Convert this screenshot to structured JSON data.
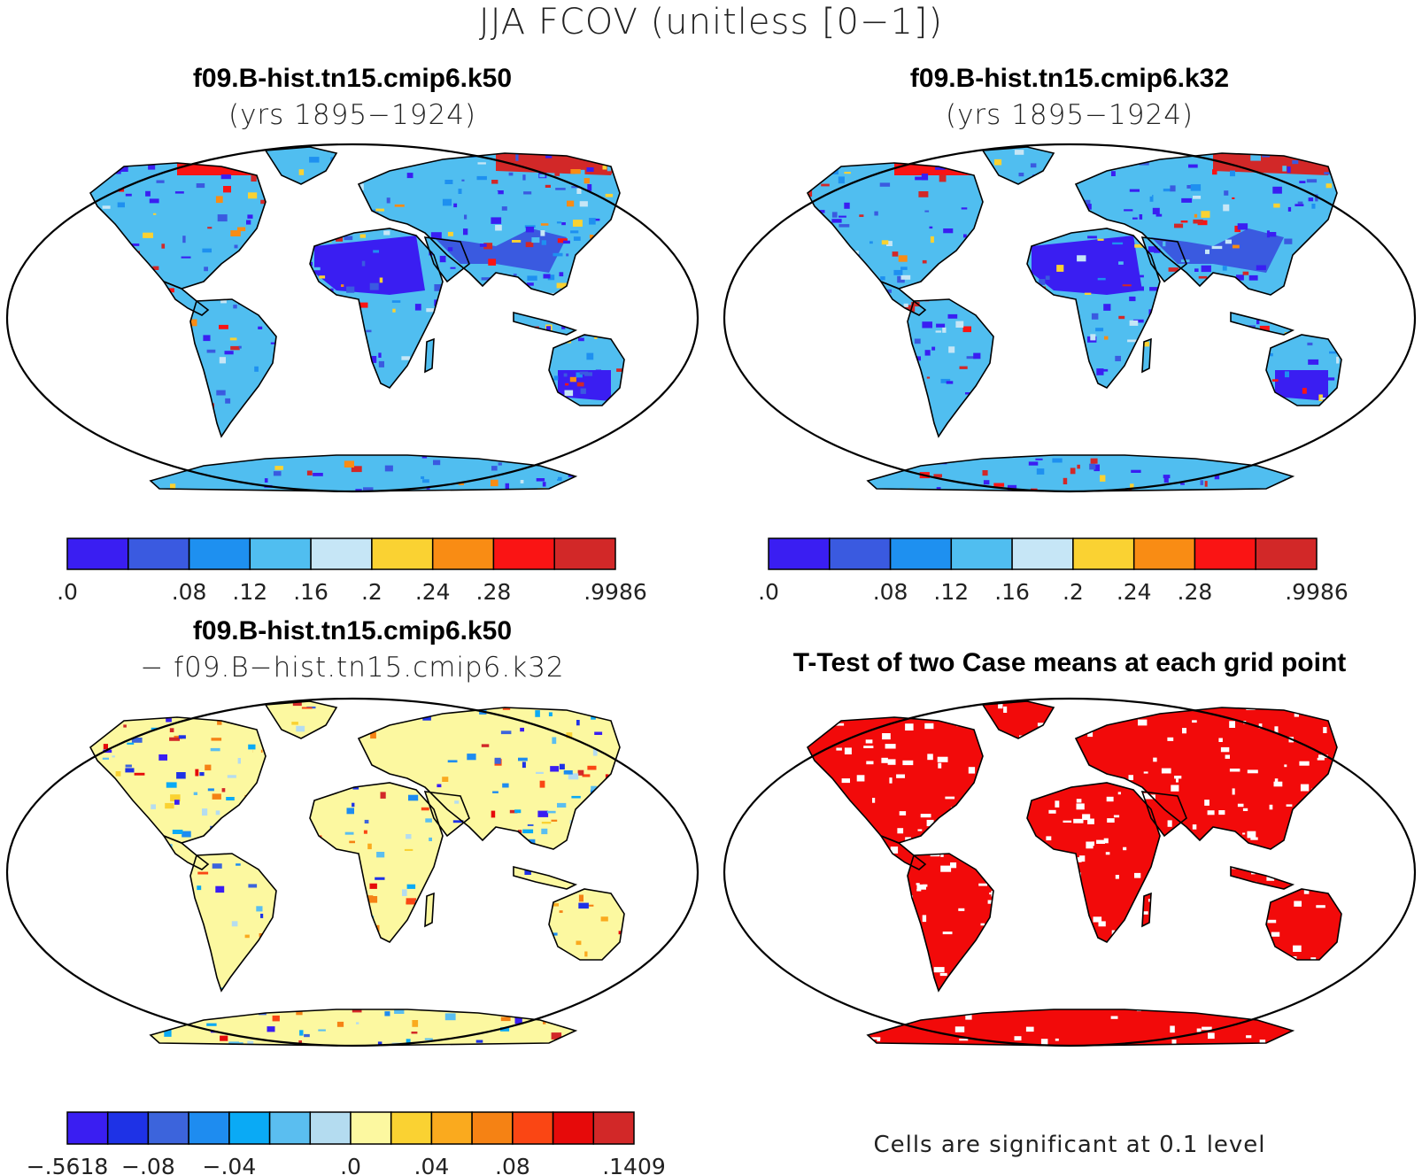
{
  "title": "JJA FCOV (unitless [0−1])",
  "panels": [
    {
      "id": "k50",
      "title": "f09.B-hist.tn15.cmip6.k50",
      "subtitle": "(yrs 1895−1924)",
      "scheme": "abs"
    },
    {
      "id": "k32",
      "title": "f09.B-hist.tn15.cmip6.k32",
      "subtitle": "(yrs 1895−1924)",
      "scheme": "abs"
    },
    {
      "id": "diff",
      "title": "f09.B-hist.tn15.cmip6.k50",
      "subtitle": "− f09.B−hist.tn15.cmip6.k32",
      "scheme": "diff"
    },
    {
      "id": "ttest",
      "title": "T-Test of two Case means at each grid point",
      "subtitle": "",
      "scheme": "sig"
    }
  ],
  "colorbar_abs": {
    "colors": [
      "#3a1ef2",
      "#3a5ae0",
      "#1e90f0",
      "#50bef0",
      "#c6e6f6",
      "#fad232",
      "#f98c14",
      "#fa1414",
      "#d22828"
    ],
    "labels": [
      ".0",
      ".08",
      ".12",
      ".16",
      ".2",
      ".24",
      ".28",
      ".9986"
    ],
    "label_boundaries": [
      0,
      2,
      3,
      4,
      5,
      6,
      7,
      9
    ]
  },
  "colorbar_diff": {
    "colors": [
      "#3a1ef2",
      "#1e32e6",
      "#3c64dc",
      "#1e8cf0",
      "#0aaaf5",
      "#5abef0",
      "#b4dcf0",
      "#fcf8a0",
      "#fad232",
      "#faaa1e",
      "#f58214",
      "#fa4614",
      "#e60a0a",
      "#d22828"
    ],
    "labels": [
      "−.5618",
      "−.08",
      "−.04",
      ".0",
      ".04",
      ".08",
      ".1409"
    ],
    "label_boundaries": [
      0,
      2,
      4,
      7,
      9,
      11,
      14
    ]
  },
  "significance_note": "Cells are significant at 0.1 level",
  "significance_color": "#f20a0a"
}
